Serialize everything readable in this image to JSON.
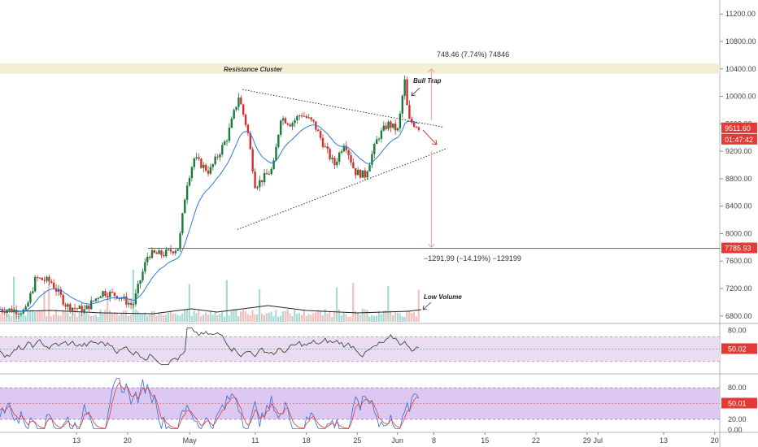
{
  "chart_data": {
    "type": "candlestick",
    "instrument_panel": {
      "y_ticks": [
        6800,
        7200,
        7600,
        8000,
        8400,
        8800,
        9200,
        9600,
        10000,
        10400,
        10800,
        11200
      ],
      "y_tick_labels": [
        "6800.00",
        "7200.00",
        "7600.00",
        "8000.00",
        "8400.00",
        "8800.00",
        "9200.00",
        "9600.00",
        "10000.00",
        "10400.00",
        "10800.00",
        "11200.00"
      ],
      "ylim": [
        6700,
        11400
      ],
      "price_label": "9511.60",
      "countdown_label": "01:47:42",
      "support_level": 7785.93,
      "support_label": "7785.93",
      "resistance_zone": [
        10330,
        10480
      ],
      "resistance_label": "Resistance Cluster",
      "measure_up_label": "748.46 (7.74%) 74846",
      "measure_down_label": "−1291.99 (−14.19%) −129199",
      "annotations": [
        "Bull Trap",
        "Low Volume"
      ],
      "upper_trendline": {
        "from": [
          9.5,
          10100
        ],
        "to": [
          17.4,
          9550
        ]
      },
      "lower_trendline": {
        "from": [
          9.3,
          8060
        ],
        "to": [
          17.5,
          9240
        ]
      },
      "candle_colors": {
        "up": "#26a69a",
        "down": "#ef5350",
        "trend_up": "#1b7a3e",
        "trend_down": "#d32f2f"
      }
    },
    "x_axis": {
      "ticks": [
        {
          "x": 3.0,
          "label": "13"
        },
        {
          "x": 5.0,
          "label": "20"
        },
        {
          "x": 7.43,
          "label": "May"
        },
        {
          "x": 10.0,
          "label": "11"
        },
        {
          "x": 12.0,
          "label": "18"
        },
        {
          "x": 14.0,
          "label": "25"
        },
        {
          "x": 15.57,
          "label": "Jun"
        },
        {
          "x": 17.0,
          "label": "8"
        },
        {
          "x": 19.0,
          "label": "15"
        },
        {
          "x": 21.0,
          "label": "22"
        },
        {
          "x": 23.0,
          "label": "29"
        },
        {
          "x": 23.43,
          "label": "Jul"
        },
        {
          "x": 26.0,
          "label": "13"
        },
        {
          "x": 28.0,
          "label": "20"
        }
      ],
      "xlim": [
        0,
        28.2
      ]
    },
    "price_keypoints": [
      {
        "x": 0.0,
        "y": 6900
      },
      {
        "x": 1.0,
        "y": 6870
      },
      {
        "x": 1.4,
        "y": 7350
      },
      {
        "x": 2.0,
        "y": 7300
      },
      {
        "x": 2.6,
        "y": 6950
      },
      {
        "x": 3.3,
        "y": 6880
      },
      {
        "x": 4.0,
        "y": 7150
      },
      {
        "x": 4.6,
        "y": 7100
      },
      {
        "x": 5.2,
        "y": 6950
      },
      {
        "x": 5.8,
        "y": 7700
      },
      {
        "x": 6.4,
        "y": 7700
      },
      {
        "x": 7.0,
        "y": 7800
      },
      {
        "x": 7.3,
        "y": 8700
      },
      {
        "x": 7.6,
        "y": 9100
      },
      {
        "x": 8.2,
        "y": 8900
      },
      {
        "x": 8.9,
        "y": 9400
      },
      {
        "x": 9.35,
        "y": 10000
      },
      {
        "x": 9.7,
        "y": 9500
      },
      {
        "x": 10.0,
        "y": 8700
      },
      {
        "x": 10.3,
        "y": 8800
      },
      {
        "x": 10.7,
        "y": 8950
      },
      {
        "x": 11.0,
        "y": 9700
      },
      {
        "x": 11.4,
        "y": 9600
      },
      {
        "x": 11.8,
        "y": 9750
      },
      {
        "x": 12.3,
        "y": 9600
      },
      {
        "x": 12.8,
        "y": 9200
      },
      {
        "x": 13.1,
        "y": 9000
      },
      {
        "x": 13.5,
        "y": 9350
      },
      {
        "x": 13.9,
        "y": 8900
      },
      {
        "x": 14.3,
        "y": 8850
      },
      {
        "x": 14.8,
        "y": 9400
      },
      {
        "x": 15.2,
        "y": 9600
      },
      {
        "x": 15.6,
        "y": 9500
      },
      {
        "x": 15.85,
        "y": 10250
      },
      {
        "x": 16.0,
        "y": 9650
      },
      {
        "x": 16.4,
        "y": 9560
      },
      {
        "x": 16.5,
        "y": 9511
      }
    ],
    "volume_panel": {
      "ma_keypoints": [
        {
          "x": 0.0,
          "y": 0.25
        },
        {
          "x": 2.0,
          "y": 0.28
        },
        {
          "x": 4.0,
          "y": 0.22
        },
        {
          "x": 6.0,
          "y": 0.2
        },
        {
          "x": 7.5,
          "y": 0.32
        },
        {
          "x": 8.5,
          "y": 0.24
        },
        {
          "x": 10.5,
          "y": 0.4
        },
        {
          "x": 12.0,
          "y": 0.28
        },
        {
          "x": 14.0,
          "y": 0.22
        },
        {
          "x": 16.0,
          "y": 0.26
        },
        {
          "x": 16.5,
          "y": 0.3
        }
      ]
    },
    "rsi_panel": {
      "y_tick_labels": [
        "80.00",
        "50.02"
      ],
      "ylim": [
        10,
        90
      ],
      "band": [
        30,
        70
      ],
      "value": 50.02,
      "value_label": "50.02"
    },
    "stoch_panel": {
      "y_tick_labels": [
        "80.00",
        "50.01",
        "20.00",
        "0.00"
      ],
      "ylim": [
        -5,
        105
      ],
      "band": [
        20,
        80
      ],
      "value": 50.01,
      "value_label": "50.01"
    }
  }
}
